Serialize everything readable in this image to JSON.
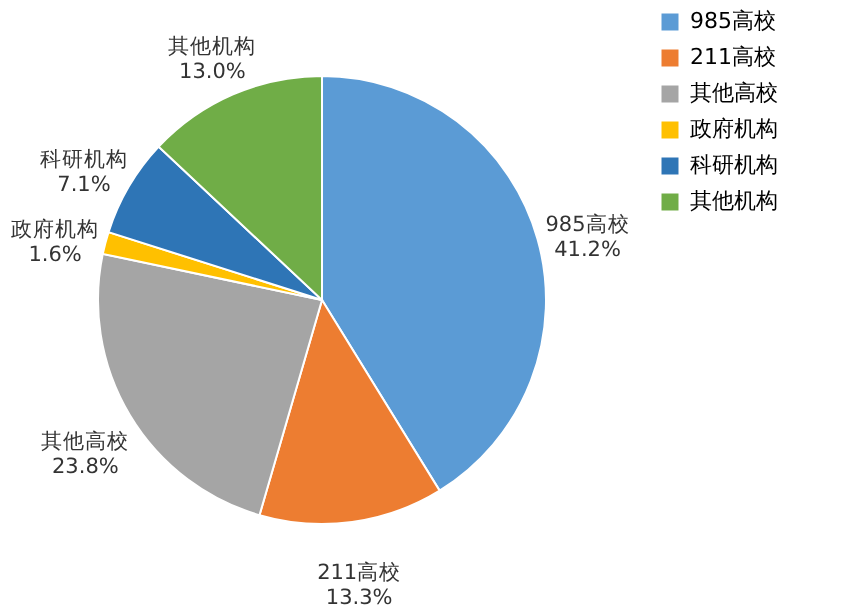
{
  "chart_data": {
    "type": "pie",
    "categories": [
      "985高校",
      "211高校",
      "其他高校",
      "政府机构",
      "科研机构",
      "其他机构"
    ],
    "values": [
      41.2,
      13.3,
      23.8,
      1.6,
      7.1,
      13.0
    ],
    "colors": [
      "#5b9bd5",
      "#ed7d31",
      "#a5a5a5",
      "#ffc000",
      "#2e75b6",
      "#70ad47"
    ],
    "value_labels": [
      "41.2%",
      "13.3%",
      "23.8%",
      "1.6%",
      "7.1%",
      "13.0%"
    ],
    "legend": "right"
  }
}
